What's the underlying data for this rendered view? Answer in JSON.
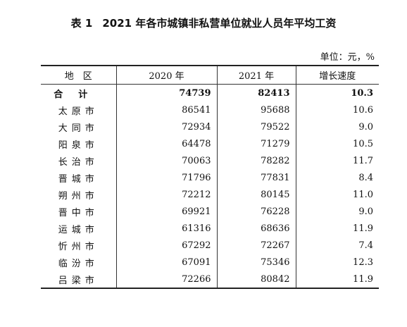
{
  "header": {
    "label": "表 1",
    "title": "2021 年各市城镇非私营单位就业人员年平均工资",
    "unit": "单位：元，%"
  },
  "table": {
    "columns": [
      "地　区",
      "2020 年",
      "2021 年",
      "增长速度"
    ],
    "rows": [
      [
        "合计",
        "74739",
        "82413",
        "10.3"
      ],
      [
        "太原市",
        "86541",
        "95688",
        "10.6"
      ],
      [
        "大同市",
        "72934",
        "79522",
        "9.0"
      ],
      [
        "阳泉市",
        "64478",
        "71279",
        "10.5"
      ],
      [
        "长治市",
        "70063",
        "78282",
        "11.7"
      ],
      [
        "晋城市",
        "71796",
        "77831",
        "8.4"
      ],
      [
        "朔州市",
        "72212",
        "80145",
        "11.0"
      ],
      [
        "晋中市",
        "69921",
        "76228",
        "9.0"
      ],
      [
        "运城市",
        "61316",
        "68636",
        "11.9"
      ],
      [
        "忻州市",
        "67292",
        "72267",
        "7.4"
      ],
      [
        "临汾市",
        "67091",
        "75346",
        "12.3"
      ],
      [
        "吕梁市",
        "72266",
        "80842",
        "11.9"
      ]
    ]
  }
}
